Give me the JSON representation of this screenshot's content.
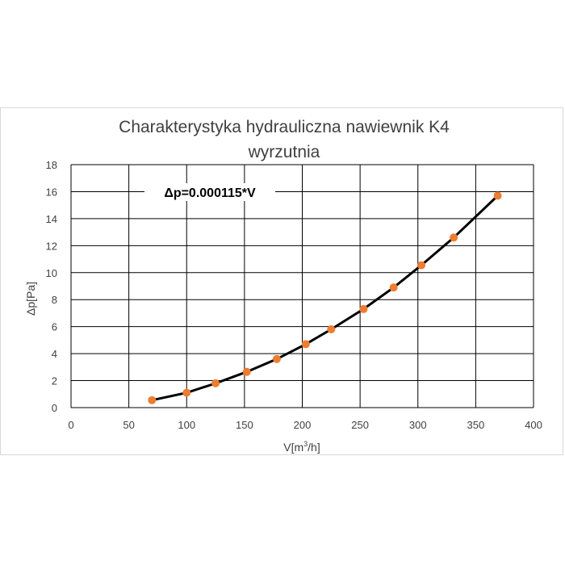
{
  "chart_data": {
    "type": "scatter",
    "title_lines": [
      "Charakterystyka hydrauliczna nawiewnik K4",
      "wyrzutnia"
    ],
    "xlabel_main": "V[m",
    "xlabel_sup": "3",
    "xlabel_tail": "/h]",
    "ylabel": "Δp[Pa]",
    "annotation": "Δp=0.000115*V",
    "xlim": [
      0,
      400
    ],
    "ylim": [
      0,
      18
    ],
    "x_ticks": [
      0,
      50,
      100,
      150,
      200,
      250,
      300,
      350,
      400
    ],
    "y_ticks": [
      0,
      2,
      4,
      6,
      8,
      10,
      12,
      14,
      16,
      18
    ],
    "grid": true,
    "series": [
      {
        "x": [
          70,
          100,
          125,
          152,
          178,
          203,
          225,
          253,
          279,
          303,
          331,
          369
        ],
        "y": [
          0.55,
          1.1,
          1.8,
          2.65,
          3.6,
          4.7,
          5.8,
          7.3,
          8.9,
          10.55,
          12.6,
          15.7
        ],
        "color": "#ed7d31",
        "trend_color": "#000000"
      }
    ]
  }
}
